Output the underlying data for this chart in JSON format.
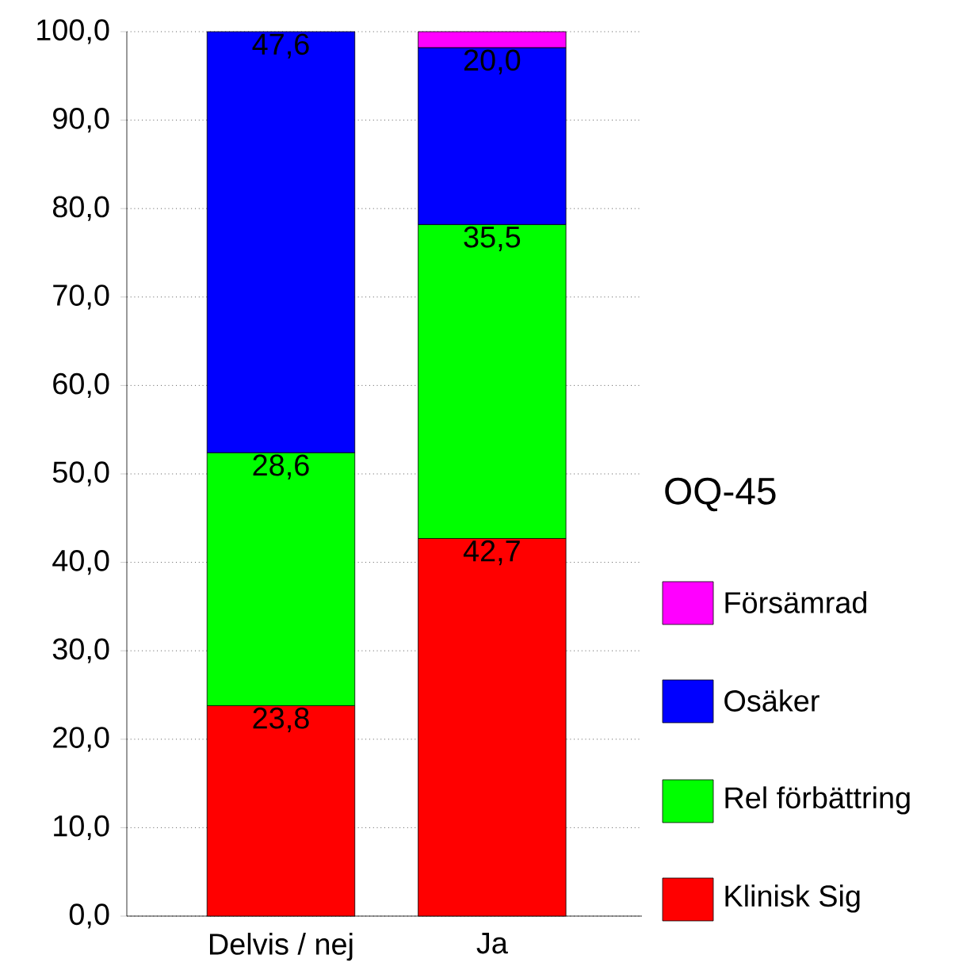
{
  "chart_data": {
    "type": "bar",
    "stacked": true,
    "categories": [
      "Delvis / nej",
      "Ja"
    ],
    "series": [
      {
        "name": "Klinisk Sig",
        "color": "#ff0000",
        "values": [
          23.8,
          42.7
        ],
        "value_labels": [
          "23,8",
          "42,7"
        ]
      },
      {
        "name": "Rel förbättring",
        "color": "#00ff00",
        "values": [
          28.6,
          35.5
        ],
        "value_labels": [
          "28,6",
          "35,5"
        ]
      },
      {
        "name": "Osäker",
        "color": "#0000ff",
        "values": [
          47.6,
          20.0
        ],
        "value_labels": [
          "47,6",
          "20,0"
        ]
      },
      {
        "name": "Försämrad",
        "color": "#ff00ff",
        "values": [
          null,
          1.8
        ],
        "value_labels": [
          null,
          null
        ]
      }
    ],
    "ylim": [
      0,
      100
    ],
    "yticks": [
      {
        "value": 0,
        "label": "0,0"
      },
      {
        "value": 10,
        "label": "10,0"
      },
      {
        "value": 20,
        "label": "20,0"
      },
      {
        "value": 30,
        "label": "30,0"
      },
      {
        "value": 40,
        "label": "40,0"
      },
      {
        "value": 50,
        "label": "50,0"
      },
      {
        "value": 60,
        "label": "60,0"
      },
      {
        "value": 70,
        "label": "70,0"
      },
      {
        "value": 80,
        "label": "80,0"
      },
      {
        "value": 90,
        "label": "90,0"
      },
      {
        "value": 100,
        "label": "100,0"
      }
    ],
    "grid": "y",
    "legend": "right",
    "legend_title": "OQ-45"
  }
}
